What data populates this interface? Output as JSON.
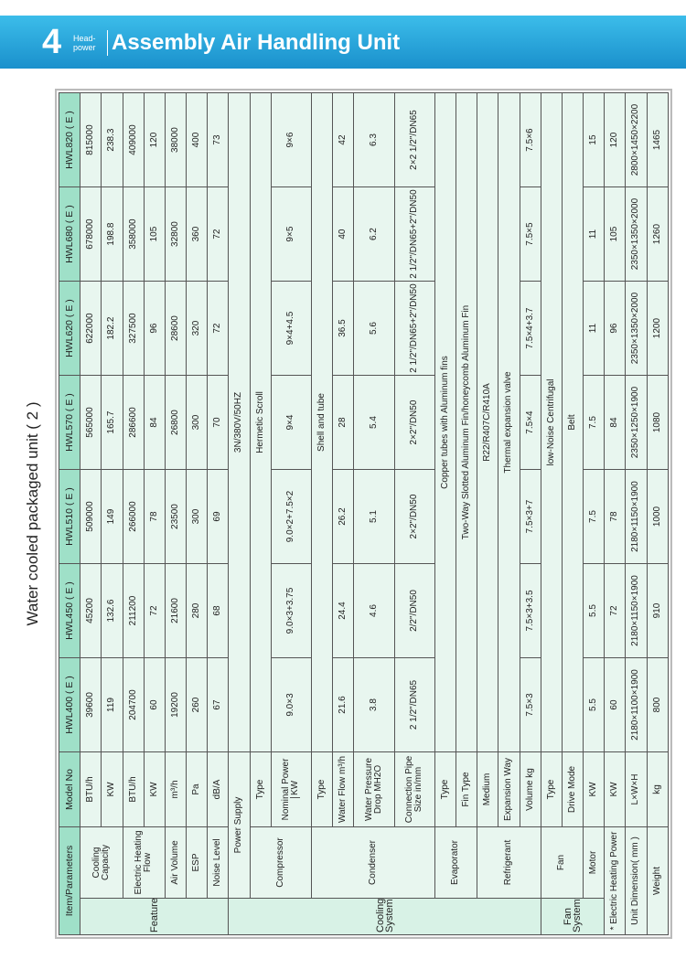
{
  "header": {
    "number": "4",
    "brand_top": "Head-",
    "brand_bottom": "power",
    "title": "Assembly Air Handling Unit"
  },
  "table": {
    "title": "Water cooled packaged unit ( 2 )",
    "header": {
      "item": "Item/Parameters",
      "model": "Model No"
    },
    "models": [
      "HWL400 ( E )",
      "HWL450 ( E )",
      "HWL510 ( E )",
      "HWL570 ( E )",
      "HWL620 ( E )",
      "HWL680 ( E )",
      "HWL820 ( E )"
    ],
    "groups": [
      "Features",
      "Cooling System",
      "Fan Systemv"
    ],
    "rows": [
      {
        "item": "Cooling Capacity",
        "unit": "BTU/h",
        "values": [
          "39600",
          "45200",
          "509000",
          "565000",
          "622000",
          "678000",
          "815000"
        ]
      },
      {
        "unit": "KW",
        "values": [
          "119",
          "132.6",
          "149",
          "165.7",
          "182.2",
          "198.8",
          "238.3"
        ]
      },
      {
        "item": "Electric Heating Flow",
        "unit": "BTU/h",
        "values": [
          "204700",
          "211200",
          "266000",
          "286600",
          "327500",
          "358000",
          "409000"
        ]
      },
      {
        "unit": "KW",
        "values": [
          "60",
          "72",
          "78",
          "84",
          "96",
          "105",
          "120"
        ]
      },
      {
        "item": "Air Volume",
        "unit": "m³/h",
        "values": [
          "19200",
          "21600",
          "23500",
          "26800",
          "28600",
          "32800",
          "38000"
        ]
      },
      {
        "item": "ESP",
        "unit": "Pa",
        "values": [
          "260",
          "280",
          "300",
          "300",
          "320",
          "360",
          "400"
        ]
      },
      {
        "item": "Noise Level",
        "unit": "dB/A",
        "values": [
          "67",
          "68",
          "69",
          "70",
          "72",
          "72",
          "73"
        ]
      },
      {
        "item": "Power Supply",
        "value": "3N/380V/50HZ"
      },
      {
        "item": "Compressor",
        "unit": "Type",
        "value": "Hermetic Scroll"
      },
      {
        "unit": "Nominal Power",
        "sub": "KW",
        "values": [
          "9.0×3",
          "9.0×3+3.75",
          "9.0×2+7.5×2",
          "9×4",
          "9×4+4.5",
          "9×5",
          "9×6"
        ]
      },
      {
        "item": "Condenser",
        "unit": "Type",
        "value": "Shell and tube"
      },
      {
        "unit": "Water Flow m³/h",
        "values": [
          "21.6",
          "24.4",
          "26.2",
          "28",
          "36.5",
          "40",
          "42"
        ]
      },
      {
        "unit": "Water Pressure Drop MH2O",
        "values": [
          "3.8",
          "4.6",
          "5.1",
          "5.4",
          "5.6",
          "6.2",
          "6.3"
        ]
      },
      {
        "unit": "Connection Pipe Size in/mm",
        "values": [
          "2 1/2\"/DN65",
          "2/2\"/DN50",
          "2×2\"/DN50",
          "2×2\"/DN50",
          "2 1/2\"/DN65+2\"/DN50",
          "2 1/2\"/DN65+2\"/DN50",
          "2×2 1/2\"/DN65"
        ]
      },
      {
        "item": "Evaporator",
        "unit": "Type",
        "value": "Copper tubes with Aluminum fins"
      },
      {
        "unit": "Fin Type",
        "value": "Two-Way Slotted Aluminum Fin/honeycomb Aluminum Fin"
      },
      {
        "item": "Refrigerant",
        "unit": "Medium",
        "value": "R22/R407C/R410A"
      },
      {
        "unit": "Expansion Way",
        "value": "Thermal expansion valve"
      },
      {
        "unit": "Volume kg",
        "values": [
          "7.5×3",
          "7.5×3+3.5",
          "7.5×3+7",
          "7.5×4",
          "7.5×4+3.7",
          "7.5×5",
          "7.5×6"
        ]
      },
      {
        "item": "Fan",
        "unit": "Type",
        "value": "low-Noise Centrifugal"
      },
      {
        "unit": "Drive Mode",
        "value": "Belt"
      },
      {
        "item": "Motor",
        "unit": "KW",
        "values": [
          "5.5",
          "5.5",
          "7.5",
          "7.5",
          "11",
          "11",
          "15"
        ]
      },
      {
        "item": "* Electric Heating Power",
        "unit": "KW",
        "values": [
          "60",
          "72",
          "78",
          "84",
          "96",
          "105",
          "120"
        ]
      },
      {
        "item": "Unit Dimension( mm )",
        "unit": "L×W×H",
        "values": [
          "2180×1100×1900",
          "2180×1150×1900",
          "2180×1150×1900",
          "2350×1250×1900",
          "2350×1350×2000",
          "2350×1350×2000",
          "2800×1450×2200"
        ]
      },
      {
        "item": "Weight",
        "unit": "kg",
        "values": [
          "800",
          "910",
          "1000",
          "1080",
          "1200",
          "1260",
          "1465"
        ]
      }
    ]
  }
}
